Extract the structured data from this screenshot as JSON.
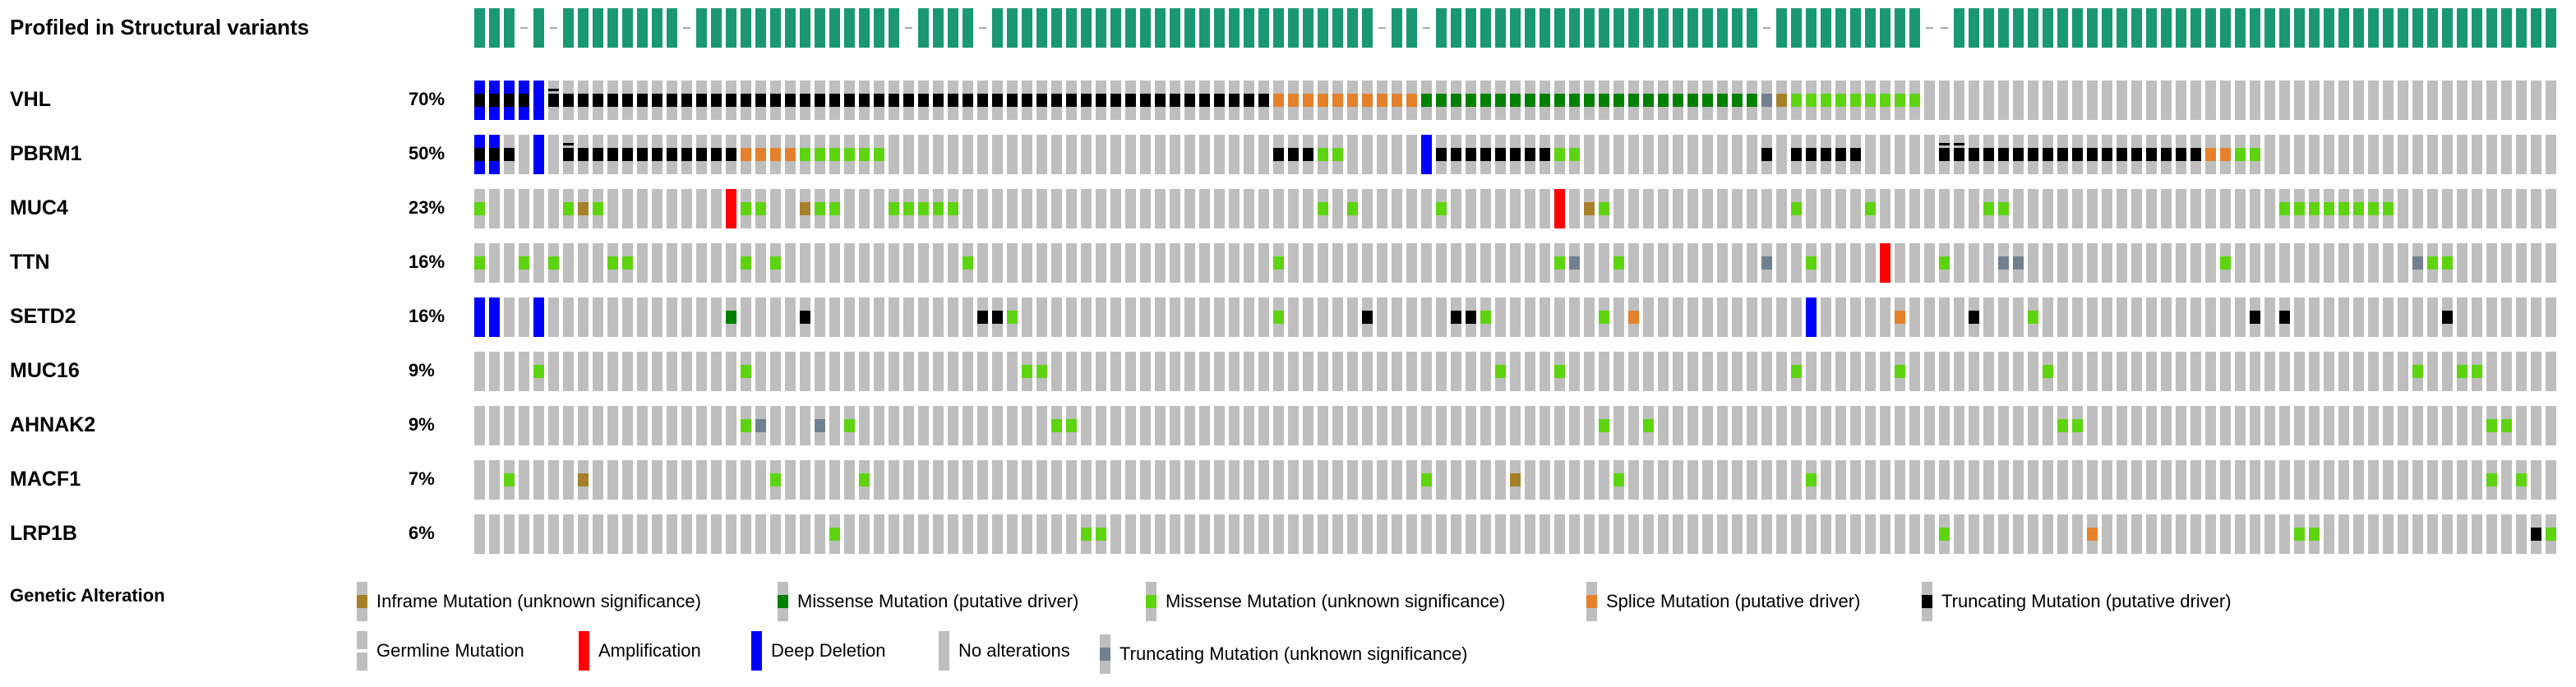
{
  "profile_track": {
    "label": "Profiled in Structural variants",
    "profiled_color": "#1a9873"
  },
  "colors": {
    "no_alteration": "#bebebe",
    "missense_putative_driver": "#008000",
    "missense_unknown": "#5dd40f",
    "truncating_putative_driver": "#000000",
    "truncating_unknown": "#708090",
    "inframe_unknown": "#a68028",
    "splice_putative_driver": "#e5802b",
    "amplification": "#ff0000",
    "deep_deletion": "#0000ff",
    "germline": "#ffffff"
  },
  "oncoprint": {
    "num_samples": 141,
    "profile_gaps": [
      3,
      5,
      14,
      29,
      34,
      61,
      64,
      87,
      98,
      99
    ],
    "genes": [
      {
        "name": "VHL",
        "percent": "70%",
        "alterations": [
          [
            0,
            "D"
          ],
          [
            0,
            "T"
          ],
          [
            1,
            "D"
          ],
          [
            1,
            "T"
          ],
          [
            2,
            "D"
          ],
          [
            2,
            "T"
          ],
          [
            3,
            "D"
          ],
          [
            3,
            "T"
          ],
          [
            4,
            "D"
          ],
          [
            5,
            "T"
          ],
          [
            5,
            "TG"
          ],
          [
            6,
            "T"
          ],
          [
            7,
            "T"
          ],
          [
            8,
            "T"
          ],
          [
            9,
            "T"
          ],
          [
            10,
            "T"
          ],
          [
            11,
            "T"
          ],
          [
            12,
            "T"
          ],
          [
            13,
            "T"
          ],
          [
            14,
            "T"
          ],
          [
            15,
            "T"
          ],
          [
            16,
            "T"
          ],
          [
            17,
            "T"
          ],
          [
            18,
            "T"
          ],
          [
            19,
            "T"
          ],
          [
            20,
            "T"
          ],
          [
            21,
            "T"
          ],
          [
            22,
            "T"
          ],
          [
            23,
            "T"
          ],
          [
            24,
            "T"
          ],
          [
            25,
            "T"
          ],
          [
            26,
            "T"
          ],
          [
            27,
            "T"
          ],
          [
            28,
            "T"
          ],
          [
            29,
            "T"
          ],
          [
            30,
            "T"
          ],
          [
            31,
            "T"
          ],
          [
            32,
            "T"
          ],
          [
            33,
            "T"
          ],
          [
            34,
            "T"
          ],
          [
            35,
            "T"
          ],
          [
            36,
            "T"
          ],
          [
            37,
            "T"
          ],
          [
            38,
            "T"
          ],
          [
            39,
            "T"
          ],
          [
            40,
            "T"
          ],
          [
            41,
            "T"
          ],
          [
            42,
            "T"
          ],
          [
            43,
            "T"
          ],
          [
            44,
            "T"
          ],
          [
            45,
            "T"
          ],
          [
            46,
            "T"
          ],
          [
            47,
            "T"
          ],
          [
            48,
            "T"
          ],
          [
            49,
            "T"
          ],
          [
            50,
            "T"
          ],
          [
            51,
            "T"
          ],
          [
            52,
            "T"
          ],
          [
            53,
            "T"
          ],
          [
            54,
            "S"
          ],
          [
            55,
            "S"
          ],
          [
            56,
            "S"
          ],
          [
            57,
            "S"
          ],
          [
            58,
            "S"
          ],
          [
            59,
            "S"
          ],
          [
            60,
            "S"
          ],
          [
            61,
            "S"
          ],
          [
            62,
            "S"
          ],
          [
            63,
            "S"
          ],
          [
            64,
            "M"
          ],
          [
            65,
            "M"
          ],
          [
            66,
            "M"
          ],
          [
            67,
            "M"
          ],
          [
            68,
            "M"
          ],
          [
            69,
            "M"
          ],
          [
            70,
            "M"
          ],
          [
            71,
            "M"
          ],
          [
            72,
            "M"
          ],
          [
            73,
            "M"
          ],
          [
            74,
            "M"
          ],
          [
            75,
            "M"
          ],
          [
            76,
            "M"
          ],
          [
            77,
            "M"
          ],
          [
            78,
            "M"
          ],
          [
            79,
            "M"
          ],
          [
            80,
            "M"
          ],
          [
            81,
            "M"
          ],
          [
            82,
            "M"
          ],
          [
            83,
            "M"
          ],
          [
            84,
            "M"
          ],
          [
            85,
            "M"
          ],
          [
            86,
            "M"
          ],
          [
            87,
            "TU"
          ],
          [
            88,
            "I"
          ],
          [
            89,
            "MU"
          ],
          [
            90,
            "MU"
          ],
          [
            91,
            "MU"
          ],
          [
            92,
            "MU"
          ],
          [
            93,
            "MU"
          ],
          [
            94,
            "MU"
          ],
          [
            95,
            "MU"
          ],
          [
            96,
            "MU"
          ],
          [
            97,
            "MU"
          ]
        ]
      },
      {
        "name": "PBRM1",
        "percent": "50%",
        "alterations": [
          [
            0,
            "D"
          ],
          [
            0,
            "T"
          ],
          [
            1,
            "D"
          ],
          [
            1,
            "T"
          ],
          [
            2,
            "T"
          ],
          [
            4,
            "D"
          ],
          [
            6,
            "T"
          ],
          [
            6,
            "TG"
          ],
          [
            7,
            "T"
          ],
          [
            8,
            "T"
          ],
          [
            9,
            "T"
          ],
          [
            10,
            "T"
          ],
          [
            11,
            "T"
          ],
          [
            12,
            "T"
          ],
          [
            13,
            "T"
          ],
          [
            14,
            "T"
          ],
          [
            15,
            "T"
          ],
          [
            16,
            "T"
          ],
          [
            17,
            "T"
          ],
          [
            18,
            "S"
          ],
          [
            19,
            "S"
          ],
          [
            20,
            "S"
          ],
          [
            21,
            "S"
          ],
          [
            22,
            "MU"
          ],
          [
            23,
            "MU"
          ],
          [
            24,
            "MU"
          ],
          [
            25,
            "MU"
          ],
          [
            26,
            "MU"
          ],
          [
            27,
            "MU"
          ],
          [
            54,
            "T"
          ],
          [
            55,
            "T"
          ],
          [
            56,
            "T"
          ],
          [
            57,
            "MU"
          ],
          [
            58,
            "MU"
          ],
          [
            64,
            "D"
          ],
          [
            65,
            "T"
          ],
          [
            66,
            "T"
          ],
          [
            67,
            "T"
          ],
          [
            68,
            "T"
          ],
          [
            69,
            "T"
          ],
          [
            70,
            "T"
          ],
          [
            71,
            "T"
          ],
          [
            72,
            "T"
          ],
          [
            73,
            "MU"
          ],
          [
            74,
            "MU"
          ],
          [
            87,
            "T"
          ],
          [
            89,
            "T"
          ],
          [
            90,
            "T"
          ],
          [
            91,
            "T"
          ],
          [
            92,
            "T"
          ],
          [
            93,
            "T"
          ],
          [
            99,
            "T"
          ],
          [
            99,
            "TG"
          ],
          [
            100,
            "T"
          ],
          [
            100,
            "TG"
          ],
          [
            101,
            "T"
          ],
          [
            102,
            "T"
          ],
          [
            103,
            "T"
          ],
          [
            104,
            "T"
          ],
          [
            105,
            "T"
          ],
          [
            106,
            "T"
          ],
          [
            107,
            "T"
          ],
          [
            108,
            "T"
          ],
          [
            109,
            "T"
          ],
          [
            110,
            "T"
          ],
          [
            111,
            "T"
          ],
          [
            112,
            "T"
          ],
          [
            113,
            "T"
          ],
          [
            114,
            "T"
          ],
          [
            115,
            "T"
          ],
          [
            116,
            "T"
          ],
          [
            117,
            "S"
          ],
          [
            118,
            "S"
          ],
          [
            119,
            "MU"
          ],
          [
            120,
            "MU"
          ]
        ]
      },
      {
        "name": "MUC4",
        "percent": "23%",
        "alterations": [
          [
            0,
            "MU"
          ],
          [
            6,
            "MU"
          ],
          [
            7,
            "I"
          ],
          [
            8,
            "MU"
          ],
          [
            17,
            "A"
          ],
          [
            18,
            "MU"
          ],
          [
            19,
            "MU"
          ],
          [
            22,
            "I"
          ],
          [
            23,
            "MU"
          ],
          [
            24,
            "MU"
          ],
          [
            28,
            "MU"
          ],
          [
            29,
            "MU"
          ],
          [
            30,
            "MU"
          ],
          [
            31,
            "MU"
          ],
          [
            32,
            "MU"
          ],
          [
            57,
            "MU"
          ],
          [
            59,
            "MU"
          ],
          [
            65,
            "MU"
          ],
          [
            73,
            "A"
          ],
          [
            75,
            "I"
          ],
          [
            76,
            "MU"
          ],
          [
            89,
            "MU"
          ],
          [
            94,
            "MU"
          ],
          [
            102,
            "MU"
          ],
          [
            103,
            "MU"
          ],
          [
            122,
            "MU"
          ],
          [
            123,
            "MU"
          ],
          [
            124,
            "MU"
          ],
          [
            125,
            "MU"
          ],
          [
            126,
            "MU"
          ],
          [
            127,
            "MU"
          ],
          [
            128,
            "MU"
          ],
          [
            129,
            "MU"
          ]
        ]
      },
      {
        "name": "TTN",
        "percent": "16%",
        "alterations": [
          [
            0,
            "MU"
          ],
          [
            3,
            "MU"
          ],
          [
            5,
            "MU"
          ],
          [
            9,
            "MU"
          ],
          [
            10,
            "MU"
          ],
          [
            18,
            "MU"
          ],
          [
            20,
            "MU"
          ],
          [
            33,
            "MU"
          ],
          [
            54,
            "MU"
          ],
          [
            73,
            "MU"
          ],
          [
            74,
            "TU"
          ],
          [
            77,
            "MU"
          ],
          [
            87,
            "TU"
          ],
          [
            90,
            "MU"
          ],
          [
            95,
            "A"
          ],
          [
            99,
            "MU"
          ],
          [
            103,
            "TU"
          ],
          [
            104,
            "TU"
          ],
          [
            118,
            "MU"
          ],
          [
            131,
            "TU"
          ],
          [
            132,
            "MU"
          ],
          [
            133,
            "MU"
          ]
        ]
      },
      {
        "name": "SETD2",
        "percent": "16%",
        "alterations": [
          [
            0,
            "D"
          ],
          [
            1,
            "D"
          ],
          [
            4,
            "D"
          ],
          [
            17,
            "M"
          ],
          [
            22,
            "T"
          ],
          [
            34,
            "T"
          ],
          [
            35,
            "T"
          ],
          [
            36,
            "MU"
          ],
          [
            54,
            "MU"
          ],
          [
            60,
            "T"
          ],
          [
            66,
            "T"
          ],
          [
            67,
            "T"
          ],
          [
            68,
            "MU"
          ],
          [
            76,
            "MU"
          ],
          [
            78,
            "S"
          ],
          [
            90,
            "D"
          ],
          [
            96,
            "S"
          ],
          [
            101,
            "T"
          ],
          [
            105,
            "MU"
          ],
          [
            120,
            "T"
          ],
          [
            122,
            "T"
          ],
          [
            133,
            "T"
          ]
        ]
      },
      {
        "name": "MUC16",
        "percent": "9%",
        "alterations": [
          [
            4,
            "MU"
          ],
          [
            18,
            "MU"
          ],
          [
            37,
            "MU"
          ],
          [
            38,
            "MU"
          ],
          [
            69,
            "MU"
          ],
          [
            73,
            "MU"
          ],
          [
            89,
            "MU"
          ],
          [
            96,
            "MU"
          ],
          [
            106,
            "MU"
          ],
          [
            131,
            "MU"
          ],
          [
            134,
            "MU"
          ],
          [
            135,
            "MU"
          ]
        ]
      },
      {
        "name": "AHNAK2",
        "percent": "9%",
        "alterations": [
          [
            18,
            "MU"
          ],
          [
            19,
            "TU"
          ],
          [
            23,
            "TU"
          ],
          [
            25,
            "MU"
          ],
          [
            39,
            "MU"
          ],
          [
            40,
            "MU"
          ],
          [
            76,
            "MU"
          ],
          [
            79,
            "MU"
          ],
          [
            107,
            "MU"
          ],
          [
            108,
            "MU"
          ],
          [
            136,
            "MU"
          ],
          [
            137,
            "MU"
          ]
        ]
      },
      {
        "name": "MACF1",
        "percent": "7%",
        "alterations": [
          [
            2,
            "MU"
          ],
          [
            7,
            "I"
          ],
          [
            20,
            "MU"
          ],
          [
            26,
            "MU"
          ],
          [
            64,
            "MU"
          ],
          [
            70,
            "I"
          ],
          [
            77,
            "MU"
          ],
          [
            90,
            "MU"
          ],
          [
            136,
            "MU"
          ],
          [
            138,
            "MU"
          ]
        ]
      },
      {
        "name": "LRP1B",
        "percent": "6%",
        "alterations": [
          [
            24,
            "MU"
          ],
          [
            41,
            "MU"
          ],
          [
            42,
            "MU"
          ],
          [
            99,
            "MU"
          ],
          [
            109,
            "S"
          ],
          [
            123,
            "MU"
          ],
          [
            124,
            "MU"
          ],
          [
            139,
            "T"
          ],
          [
            140,
            "MU"
          ]
        ]
      }
    ]
  },
  "legend": {
    "title": "Genetic Alteration",
    "items": [
      {
        "key": "I",
        "label": "Inframe Mutation (unknown significance)"
      },
      {
        "key": "M",
        "label": "Missense Mutation (putative driver)"
      },
      {
        "key": "MU",
        "label": "Missense Mutation (unknown significance)"
      },
      {
        "key": "S",
        "label": "Splice Mutation (putative driver)"
      },
      {
        "key": "T",
        "label": "Truncating Mutation (putative driver)"
      },
      {
        "key": "G",
        "label": "Germline Mutation"
      },
      {
        "key": "A",
        "label": "Amplification"
      },
      {
        "key": "D",
        "label": "Deep Deletion"
      },
      {
        "key": "N",
        "label": "No alterations"
      },
      {
        "key": "TU",
        "label": "Truncating Mutation (unknown significance)"
      }
    ]
  }
}
